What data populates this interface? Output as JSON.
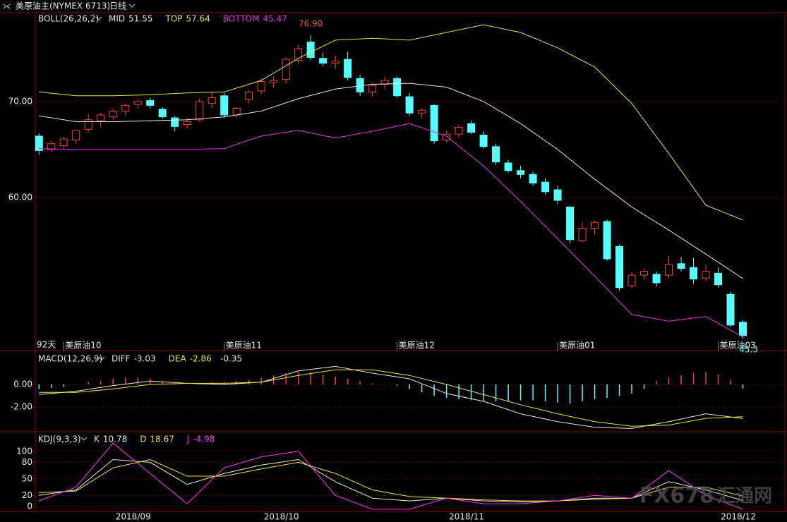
{
  "header": {
    "title": "美原油主(NYMEX 6713)",
    "period": "日线"
  },
  "watermark": {
    "brand": "FX678",
    "name": "汇通网"
  },
  "chart_data": [
    {
      "type": "candlestick",
      "title": "BOLL(26,26,2)",
      "period_label": "92天",
      "high_label": "76.90",
      "up_color": "#ff3c3c",
      "down_color": "#54ffff",
      "grid": true,
      "ylim": [
        44.04,
        79.26
      ],
      "yticks": [
        {
          "value": 70,
          "label": "70.00"
        },
        {
          "value": 60,
          "label": "60.00"
        }
      ],
      "xlim": [
        -0.3,
        60.4
      ],
      "xticks": [
        {
          "value": 2,
          "label": "美原油10"
        },
        {
          "value": 15,
          "label": "美原油11"
        },
        {
          "value": 29,
          "label": "美原油12"
        },
        {
          "value": 42,
          "label": "美原油01"
        },
        {
          "value": 55,
          "label": "美原油03"
        }
      ],
      "ohlc": [
        [
          66.4,
          66.7,
          64.43,
          64.9
        ],
        [
          65.0,
          65.9,
          64.7,
          65.6
        ],
        [
          65.4,
          66.3,
          65.0,
          66.1
        ],
        [
          66.0,
          67.1,
          65.6,
          67.0
        ],
        [
          67.1,
          68.7,
          66.8,
          68.1
        ],
        [
          68.0,
          68.8,
          67.3,
          68.6
        ],
        [
          68.4,
          69.2,
          68.1,
          69.0
        ],
        [
          69.0,
          69.8,
          68.6,
          69.6
        ],
        [
          69.7,
          70.2,
          69.3,
          70.0
        ],
        [
          70.1,
          70.4,
          69.3,
          69.6
        ],
        [
          69.2,
          69.4,
          68.2,
          68.4
        ],
        [
          68.3,
          68.5,
          66.9,
          67.4
        ],
        [
          67.6,
          68.3,
          67.2,
          67.9
        ],
        [
          68.1,
          70.3,
          67.9,
          70.0
        ],
        [
          69.8,
          71.0,
          69.3,
          70.4
        ],
        [
          70.6,
          70.9,
          68.3,
          68.6
        ],
        [
          68.6,
          69.4,
          68.3,
          69.3
        ],
        [
          70.2,
          71.2,
          69.8,
          71.0
        ],
        [
          71.1,
          72.4,
          70.8,
          72.1
        ],
        [
          72.0,
          72.6,
          71.4,
          72.2
        ],
        [
          72.3,
          74.6,
          71.9,
          74.4
        ],
        [
          74.3,
          75.9,
          73.9,
          75.5
        ],
        [
          76.2,
          76.9,
          74.3,
          74.6
        ],
        [
          74.5,
          75.1,
          73.7,
          74.0
        ],
        [
          74.0,
          74.8,
          73.4,
          74.2
        ],
        [
          74.4,
          75.2,
          72.2,
          72.5
        ],
        [
          72.4,
          72.8,
          70.6,
          71.0
        ],
        [
          71.0,
          72.0,
          70.5,
          71.7
        ],
        [
          71.8,
          72.6,
          71.3,
          72.2
        ],
        [
          72.4,
          72.6,
          70.4,
          70.6
        ],
        [
          70.5,
          70.9,
          68.5,
          68.8
        ],
        [
          68.8,
          69.3,
          68.2,
          69.1
        ],
        [
          69.6,
          69.7,
          65.6,
          65.9
        ],
        [
          66.0,
          67.0,
          65.7,
          66.6
        ],
        [
          66.6,
          67.6,
          66.2,
          67.3
        ],
        [
          67.7,
          68.0,
          66.6,
          66.8
        ],
        [
          66.5,
          66.9,
          65.1,
          65.3
        ],
        [
          65.3,
          65.6,
          63.4,
          63.7
        ],
        [
          63.6,
          63.9,
          62.6,
          62.8
        ],
        [
          62.8,
          63.3,
          62.0,
          62.4
        ],
        [
          62.4,
          62.7,
          61.2,
          61.5
        ],
        [
          61.6,
          62.0,
          60.3,
          60.6
        ],
        [
          60.8,
          61.2,
          59.3,
          59.7
        ],
        [
          59.0,
          59.1,
          55.2,
          55.6
        ],
        [
          55.5,
          57.4,
          55.3,
          56.8
        ],
        [
          56.8,
          57.6,
          56.1,
          57.4
        ],
        [
          57.5,
          57.7,
          53.4,
          53.6
        ],
        [
          54.9,
          55.1,
          50.3,
          50.6
        ],
        [
          50.8,
          52.2,
          50.5,
          51.9
        ],
        [
          51.9,
          52.6,
          51.4,
          52.3
        ],
        [
          52.0,
          52.3,
          50.7,
          51.1
        ],
        [
          51.9,
          53.9,
          51.6,
          53.0
        ],
        [
          53.1,
          53.8,
          52.3,
          52.6
        ],
        [
          52.7,
          53.7,
          51.0,
          51.5
        ],
        [
          51.6,
          53.0,
          51.3,
          52.3
        ],
        [
          52.1,
          52.7,
          50.6,
          50.9
        ],
        [
          49.9,
          50.2,
          46.5,
          46.7
        ],
        [
          47.0,
          47.2,
          45.3,
          45.6
        ]
      ],
      "x": [
        0,
        3,
        6,
        9,
        12,
        15,
        18,
        21,
        24,
        27,
        30,
        33,
        36,
        39,
        42,
        45,
        48,
        51,
        54,
        57
      ],
      "series": [
        {
          "name": "MID",
          "color": "#e6e6e6",
          "values": [
            68.5,
            67.9,
            67.9,
            68.0,
            68.1,
            68.4,
            69.0,
            70.3,
            71.3,
            71.8,
            71.9,
            71.5,
            70.0,
            67.7,
            65.0,
            61.9,
            59.0,
            56.6,
            54.1,
            51.55
          ]
        },
        {
          "name": "TOP",
          "color": "#e6e632",
          "values": [
            71.0,
            70.6,
            70.6,
            70.7,
            70.9,
            71.0,
            72.2,
            74.5,
            76.4,
            76.6,
            76.4,
            77.2,
            78.0,
            77.2,
            75.6,
            73.6,
            69.8,
            64.6,
            59.2,
            57.64
          ]
        },
        {
          "name": "BOTTOM",
          "color": "#e632e6",
          "values": [
            65.1,
            65.0,
            65.0,
            65.0,
            65.0,
            65.1,
            66.4,
            67.0,
            66.2,
            66.9,
            67.7,
            66.4,
            63.3,
            59.6,
            55.7,
            51.8,
            47.8,
            47.1,
            47.6,
            45.47
          ]
        }
      ]
    },
    {
      "type": "macd",
      "title": "MACD(12,26,9)",
      "grid": true,
      "ylim": [
        -4.19,
        2.81
      ],
      "yticks": [
        {
          "value": 0,
          "label": "0.00"
        },
        {
          "value": -2,
          "label": "-2.00"
        }
      ],
      "xlim": [
        -0.3,
        60.4
      ],
      "x": [
        0,
        3,
        6,
        9,
        12,
        15,
        18,
        21,
        24,
        27,
        30,
        33,
        36,
        39,
        42,
        45,
        48,
        51,
        54,
        57
      ],
      "series": [
        {
          "name": "DIFF",
          "color": "#e6e6e6",
          "values": [
            -0.9,
            -0.6,
            -0.1,
            0.3,
            0.1,
            0.0,
            0.2,
            1.2,
            1.6,
            1.0,
            0.5,
            -0.8,
            -1.5,
            -2.6,
            -3.3,
            -3.8,
            -3.9,
            -3.3,
            -2.6,
            -3.03
          ]
        },
        {
          "name": "DEA",
          "color": "#e6e632",
          "values": [
            -0.7,
            -0.7,
            -0.4,
            0.0,
            0.1,
            0.1,
            0.2,
            0.8,
            1.3,
            1.3,
            0.8,
            0.0,
            -0.9,
            -1.8,
            -2.6,
            -3.3,
            -3.7,
            -3.6,
            -3.0,
            -2.86
          ]
        }
      ],
      "histogram": {
        "up_color": "#ff3c3c",
        "down_color": "#54ffff",
        "values": [
          -0.4,
          -0.3,
          -0.2,
          0.0,
          0.2,
          0.3,
          0.5,
          0.6,
          0.6,
          0.5,
          0.3,
          0.1,
          0.0,
          0.1,
          0.2,
          0.2,
          0.3,
          0.4,
          0.6,
          0.8,
          1.0,
          1.1,
          1.1,
          0.9,
          0.7,
          0.5,
          0.3,
          0.1,
          0.0,
          -0.1,
          -0.4,
          -0.7,
          -1.0,
          -1.2,
          -1.3,
          -1.4,
          -1.5,
          -1.5,
          -1.5,
          -1.4,
          -1.4,
          -1.5,
          -1.6,
          -1.7,
          -1.5,
          -1.3,
          -1.2,
          -1.0,
          -0.8,
          -0.4,
          0.3,
          0.6,
          0.8,
          1.0,
          1.1,
          0.9,
          0.4,
          -0.35
        ]
      }
    },
    {
      "type": "line",
      "title": "KDJ(9,3,3)",
      "grid": true,
      "ylim": [
        -9,
        133
      ],
      "yticks": [
        0,
        20,
        50,
        80,
        100
      ],
      "xlim": [
        -0.3,
        60.4
      ],
      "xticks": [
        {
          "value": 9,
          "label": "2018/09"
        },
        {
          "value": 21,
          "label": "2018/10"
        },
        {
          "value": 36,
          "label": "2018/11"
        },
        {
          "value": 58,
          "label": "2018/12"
        }
      ],
      "x": [
        0,
        3,
        6,
        9,
        12,
        15,
        18,
        21,
        24,
        27,
        30,
        33,
        36,
        39,
        42,
        45,
        48,
        51,
        54,
        57
      ],
      "series": [
        {
          "name": "K",
          "color": "#e6e6e6",
          "values": [
            20,
            30,
            85,
            80,
            40,
            60,
            75,
            85,
            45,
            15,
            10,
            15,
            10,
            8,
            10,
            15,
            15,
            45,
            30,
            10.78
          ]
        },
        {
          "name": "D",
          "color": "#e6e632",
          "values": [
            25,
            28,
            70,
            85,
            55,
            55,
            68,
            80,
            60,
            30,
            18,
            15,
            12,
            10,
            10,
            13,
            15,
            35,
            35,
            18.67
          ]
        },
        {
          "name": "J",
          "color": "#ff32ff",
          "values": [
            10,
            35,
            115,
            60,
            5,
            70,
            90,
            100,
            20,
            -5,
            -5,
            15,
            5,
            5,
            10,
            20,
            15,
            65,
            20,
            -4.98
          ]
        }
      ]
    }
  ]
}
